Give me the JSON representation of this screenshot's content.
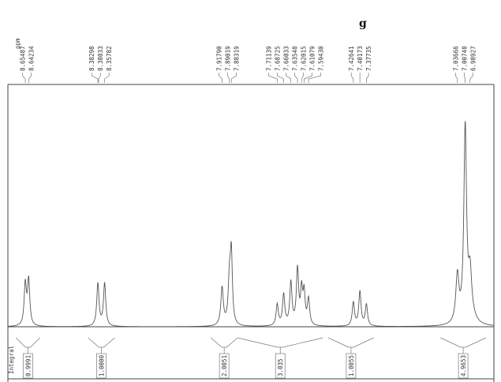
{
  "page": {
    "title_fragment": "g"
  },
  "chart_data": {
    "type": "line",
    "title": "",
    "xlabel": "",
    "ylabel": "",
    "x_unit": "ppm",
    "x_reversed": true,
    "xlim": [
      8.72,
      6.9
    ],
    "ppm_label": "ppm",
    "integral_label": "Integral",
    "peak_labels": [
      {
        "group": 0,
        "values": [
          "8.65487",
          "8.64234"
        ]
      },
      {
        "group": 1,
        "values": [
          "8.38298",
          "8.38033",
          "8.35782"
        ]
      },
      {
        "group": 2,
        "values": [
          "7.91790",
          "7.89019",
          "7.88319"
        ]
      },
      {
        "group": 3,
        "values": [
          "7.71139",
          "7.68725",
          "7.66033",
          "7.63548",
          "7.62015",
          "7.61079",
          "7.59430"
        ]
      },
      {
        "group": 4,
        "values": [
          "7.42641",
          "7.40173",
          "7.37735"
        ]
      },
      {
        "group": 5,
        "values": [
          "7.03666",
          "7.00748",
          "6.98927"
        ]
      }
    ],
    "integrals": [
      {
        "from": 8.69,
        "to": 8.6,
        "value": "0.9991"
      },
      {
        "from": 8.42,
        "to": 8.32,
        "value": "1.0000"
      },
      {
        "from": 7.96,
        "to": 7.86,
        "value": "2.0051"
      },
      {
        "from": 7.86,
        "to": 7.54,
        "value": "3.035"
      },
      {
        "from": 7.52,
        "to": 7.35,
        "value": "1.0055"
      },
      {
        "from": 7.1,
        "to": 6.93,
        "value": "4.9653"
      }
    ],
    "peaks": [
      {
        "shift": 8.6549,
        "height": 0.175,
        "width": 0.005
      },
      {
        "shift": 8.6423,
        "height": 0.19,
        "width": 0.005
      },
      {
        "shift": 8.383,
        "height": 0.18,
        "width": 0.005
      },
      {
        "shift": 8.3578,
        "height": 0.18,
        "width": 0.005
      },
      {
        "shift": 7.9179,
        "height": 0.16,
        "width": 0.0055
      },
      {
        "shift": 7.8902,
        "height": 0.19,
        "width": 0.0055
      },
      {
        "shift": 7.8832,
        "height": 0.28,
        "width": 0.0045
      },
      {
        "shift": 7.7114,
        "height": 0.09,
        "width": 0.005
      },
      {
        "shift": 7.6873,
        "height": 0.13,
        "width": 0.005
      },
      {
        "shift": 7.6603,
        "height": 0.18,
        "width": 0.005
      },
      {
        "shift": 7.6355,
        "height": 0.235,
        "width": 0.005
      },
      {
        "shift": 7.6202,
        "height": 0.14,
        "width": 0.0045
      },
      {
        "shift": 7.6108,
        "height": 0.13,
        "width": 0.0045
      },
      {
        "shift": 7.5943,
        "height": 0.11,
        "width": 0.005
      },
      {
        "shift": 7.4264,
        "height": 0.1,
        "width": 0.005
      },
      {
        "shift": 7.4017,
        "height": 0.145,
        "width": 0.005
      },
      {
        "shift": 7.3774,
        "height": 0.09,
        "width": 0.005
      },
      {
        "shift": 7.0367,
        "height": 0.2,
        "width": 0.007
      },
      {
        "shift": 7.0075,
        "height": 0.82,
        "width": 0.006
      },
      {
        "shift": 6.9893,
        "height": 0.18,
        "width": 0.007
      }
    ],
    "baseline_range": [
      0,
      1
    ]
  }
}
